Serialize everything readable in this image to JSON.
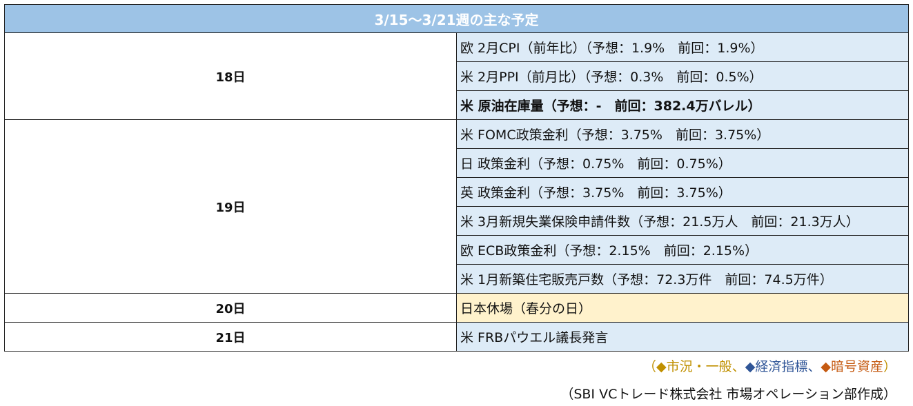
{
  "title": "3/15〜3/21週の主な予定",
  "days": [
    {
      "label": "18日",
      "events": [
        {
          "text": "欧 2月CPI（前年比）（予想：1.9%　前回：1.9%）",
          "bold": false,
          "holiday": false
        },
        {
          "text": "米 2月PPI（前月比）（予想：0.3%　前回：0.5%）",
          "bold": false,
          "holiday": false
        },
        {
          "text": "米 原油在庫量（予想：-　前回：382.4万バレル）",
          "bold": true,
          "holiday": false
        }
      ]
    },
    {
      "label": "19日",
      "events": [
        {
          "text": "米 FOMC政策金利（予想：3.75%　前回：3.75%）",
          "bold": false,
          "holiday": false
        },
        {
          "text": "日 政策金利（予想：0.75%　前回：0.75%）",
          "bold": false,
          "holiday": false
        },
        {
          "text": "英 政策金利（予想：3.75%　前回：3.75%）",
          "bold": false,
          "holiday": false
        },
        {
          "text": "米 3月新規失業保険申請件数（予想：21.5万人　前回：21.3万人）",
          "bold": false,
          "holiday": false
        },
        {
          "text": "欧 ECB政策金利（予想：2.15%　前回：2.15%）",
          "bold": false,
          "holiday": false
        },
        {
          "text": "米 1月新築住宅販売戸数（予想：72.3万件　前回：74.5万件）",
          "bold": false,
          "holiday": false
        }
      ]
    },
    {
      "label": "20日",
      "events": [
        {
          "text": "日本休場（春分の日）",
          "bold": false,
          "holiday": true
        }
      ]
    },
    {
      "label": "21日",
      "events": [
        {
          "text": "米 FRBパウエル議長発言",
          "bold": false,
          "holiday": false
        }
      ]
    }
  ],
  "legend": {
    "open": "（",
    "items": [
      {
        "diamond": "◆",
        "label": "市況・一般",
        "color": "#c09000",
        "sep": "、"
      },
      {
        "diamond": "◆",
        "label": "経済指標",
        "color": "#2f5597",
        "sep": "、"
      },
      {
        "diamond": "◆",
        "label": "暗号資産",
        "color": "#c55a11",
        "sep": ""
      }
    ],
    "close": "）"
  },
  "source": "（SBI VCトレード株式会社 市場オペレーション部作成）"
}
